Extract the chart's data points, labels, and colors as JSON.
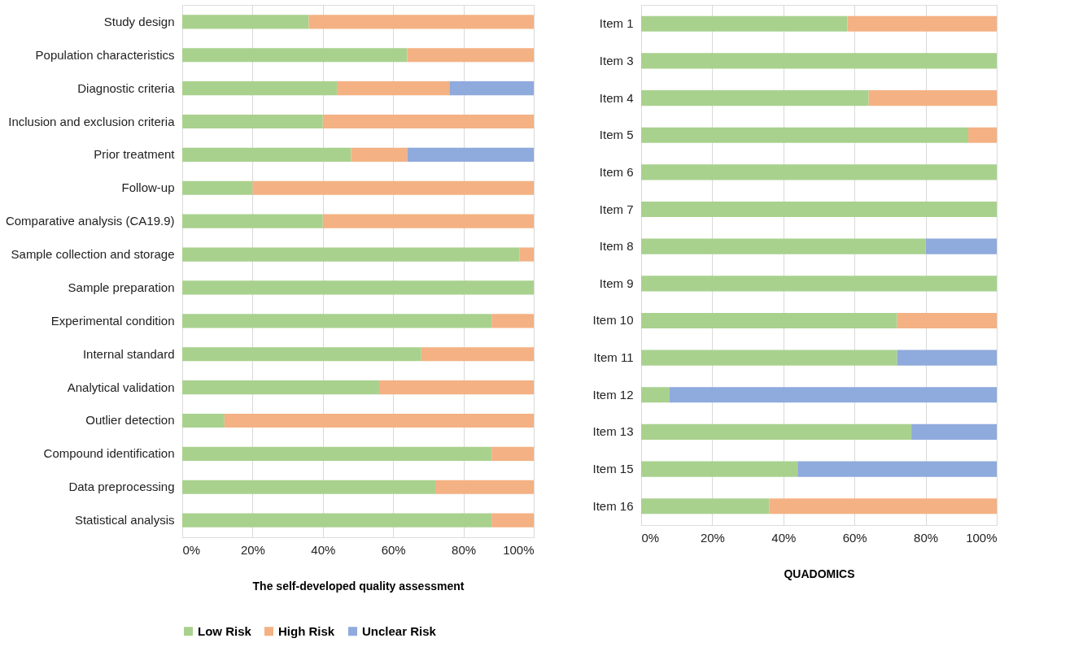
{
  "chart_data": [
    {
      "type": "bar",
      "orientation": "horizontal",
      "stacked": true,
      "xlabel": "The self-developed quality assessment",
      "grid": "x",
      "legend": "bottom",
      "categories": [
        "Study design",
        "Population characteristics",
        "Diagnostic criteria",
        "Inclusion and exclusion criteria",
        "Prior treatment",
        "Follow-up",
        "Comparative analysis (CA19.9)",
        "Sample collection and storage",
        "Sample preparation",
        "Experimental condition",
        "Internal standard",
        "Analytical validation",
        "Outlier detection",
        "Compound identification",
        "Data preprocessing",
        "Statistical analysis"
      ],
      "xlim": [
        0,
        100
      ],
      "xticks": [
        {
          "value": 0,
          "label": "0%"
        },
        {
          "value": 20,
          "label": "20%"
        },
        {
          "value": 40,
          "label": "40%"
        },
        {
          "value": 60,
          "label": "60%"
        },
        {
          "value": 80,
          "label": "80%"
        },
        {
          "value": 100,
          "label": "100%"
        }
      ],
      "series": [
        {
          "name": "Low Risk",
          "color": "#a9d18e",
          "values": [
            36,
            64,
            44,
            40,
            48,
            20,
            40,
            96,
            100,
            88,
            68,
            56,
            12,
            88,
            72,
            88
          ]
        },
        {
          "name": "High Risk",
          "color": "#f4b183",
          "values": [
            64,
            36,
            32,
            60,
            16,
            80,
            60,
            4,
            null,
            12,
            32,
            44,
            88,
            12,
            28,
            12
          ]
        },
        {
          "name": "Unclear Risk",
          "color": "#8faadc",
          "values": [
            null,
            null,
            24,
            null,
            36,
            null,
            null,
            null,
            null,
            null,
            null,
            null,
            null,
            null,
            null,
            null
          ]
        }
      ]
    },
    {
      "type": "bar",
      "orientation": "horizontal",
      "stacked": true,
      "xlabel": "QUADOMICS",
      "grid": "x",
      "legend": "bottom",
      "categories": [
        "Item 1",
        "Item 3",
        "Item 4",
        "Item 5",
        "Item 6",
        "Item 7",
        "Item 8",
        "Item 9",
        "Item 10",
        "Item 11",
        "Item 12",
        "Item 13",
        "Item 15",
        "Item 16"
      ],
      "xlim": [
        0,
        100
      ],
      "xticks": [
        {
          "value": 0,
          "label": "0%"
        },
        {
          "value": 20,
          "label": "20%"
        },
        {
          "value": 40,
          "label": "40%"
        },
        {
          "value": 60,
          "label": "60%"
        },
        {
          "value": 80,
          "label": "80%"
        },
        {
          "value": 100,
          "label": "100%"
        }
      ],
      "series": [
        {
          "name": "Low Risk",
          "color": "#a9d18e",
          "values": [
            58,
            100,
            64,
            92,
            100,
            100,
            80,
            100,
            72,
            72,
            8,
            76,
            44,
            36
          ]
        },
        {
          "name": "High Risk",
          "color": "#f4b183",
          "values": [
            42,
            null,
            36,
            8,
            null,
            null,
            null,
            null,
            28,
            null,
            null,
            null,
            null,
            64
          ]
        },
        {
          "name": "Unclear Risk",
          "color": "#8faadc",
          "values": [
            null,
            null,
            null,
            null,
            null,
            null,
            20,
            null,
            null,
            28,
            92,
            24,
            56,
            null
          ]
        }
      ]
    }
  ]
}
